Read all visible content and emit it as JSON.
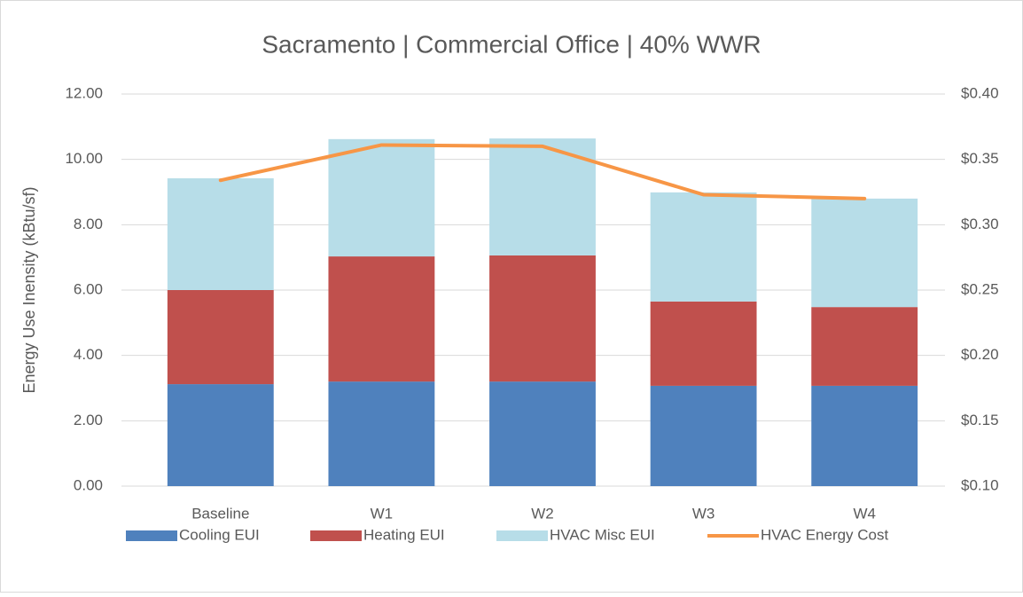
{
  "chart_data": {
    "type": "bar",
    "title": "Sacramento  |  Commercial Office  | 40% WWR",
    "y_label": "Energy Use Inensity (kBtu/sf)",
    "categories": [
      "Baseline",
      "W1",
      "W2",
      "W3",
      "W4"
    ],
    "stacked": true,
    "series": [
      {
        "name": "Cooling EUI",
        "color": "#4f81bd",
        "type": "bar",
        "values": [
          3.12,
          3.2,
          3.2,
          3.07,
          3.07
        ]
      },
      {
        "name": "Heating EUI",
        "color": "#c0504d",
        "type": "bar",
        "values": [
          2.88,
          3.83,
          3.86,
          2.58,
          2.41
        ]
      },
      {
        "name": "HVAC Misc EUI",
        "color": "#b7dde8",
        "type": "bar",
        "values": [
          3.42,
          3.59,
          3.58,
          3.34,
          3.32
        ]
      },
      {
        "name": "HVAC Energy Cost",
        "color": "#f79646",
        "type": "line",
        "axis": "y2",
        "values": [
          0.334,
          0.361,
          0.36,
          0.323,
          0.32
        ]
      }
    ],
    "ylim": [
      0,
      12
    ],
    "yticks": [
      {
        "value": 0,
        "label": "0.00"
      },
      {
        "value": 2,
        "label": "2.00"
      },
      {
        "value": 4,
        "label": "4.00"
      },
      {
        "value": 6,
        "label": "6.00"
      },
      {
        "value": 8,
        "label": "8.00"
      },
      {
        "value": 10,
        "label": "10.00"
      },
      {
        "value": 12,
        "label": "12.00"
      }
    ],
    "y2lim": [
      0.1,
      0.4
    ],
    "y2ticks": [
      {
        "value": 0.1,
        "label": "$0.10"
      },
      {
        "value": 0.15,
        "label": "$0.15"
      },
      {
        "value": 0.2,
        "label": "$0.20"
      },
      {
        "value": 0.25,
        "label": "$0.25"
      },
      {
        "value": 0.3,
        "label": "$0.30"
      },
      {
        "value": 0.35,
        "label": "$0.35"
      },
      {
        "value": 0.4,
        "label": "$0.40"
      }
    ],
    "grid": true,
    "legend": "bottom"
  }
}
